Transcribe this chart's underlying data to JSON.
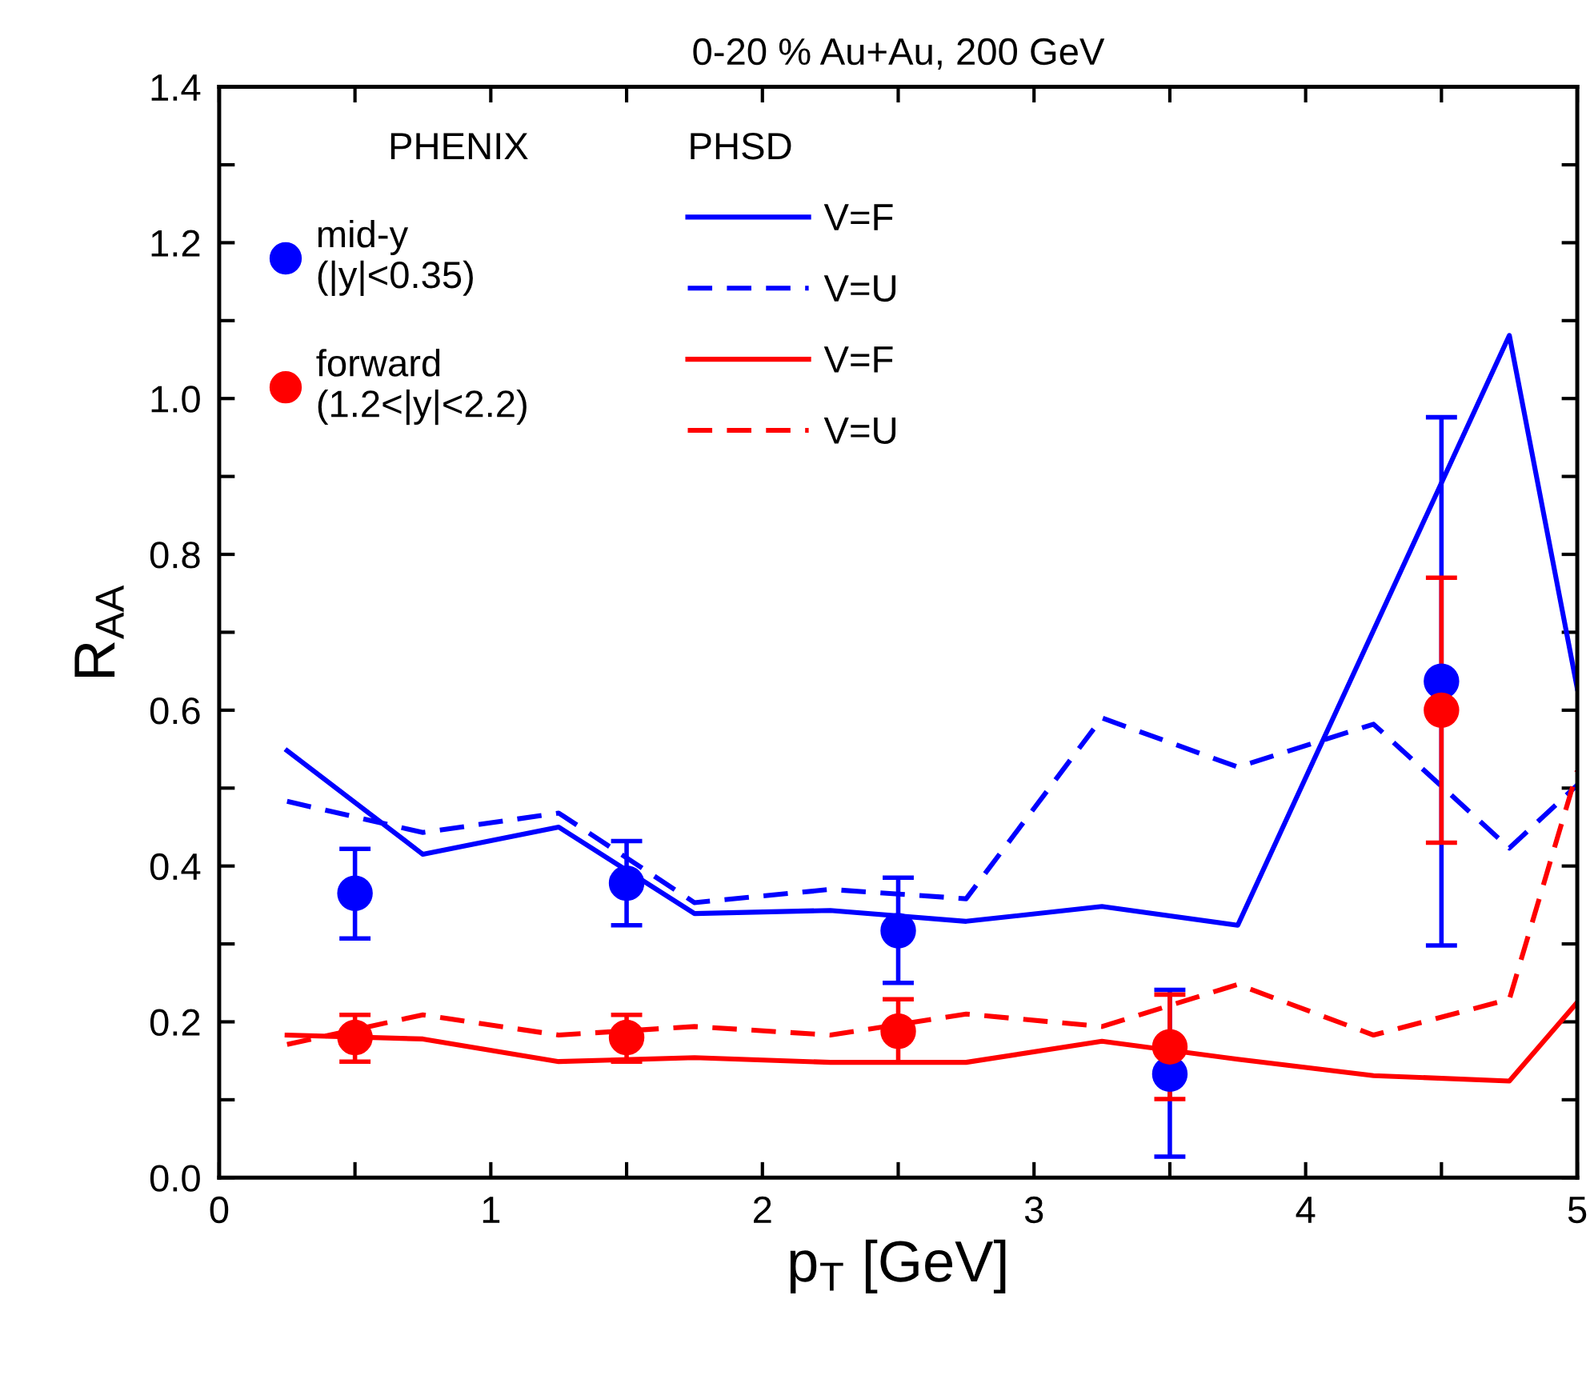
{
  "chart_data": {
    "type": "line",
    "title": "0-20 % Au+Au, 200 GeV",
    "xlabel": "p$_{T}$ [GeV]",
    "ylabel": "R$_{AA}$",
    "xlim": [
      0,
      5
    ],
    "ylim": [
      0,
      1.4
    ],
    "xticks": [
      0,
      {
        "value": 0.5,
        "label": null
      },
      1,
      {
        "value": 1.5,
        "label": null
      },
      2,
      {
        "value": 2.5,
        "label": null
      },
      3,
      {
        "value": 3.5,
        "label": null
      },
      4,
      {
        "value": 4.5,
        "label": null
      },
      5
    ],
    "yticks": [
      {
        "value": 0,
        "label": "0.0"
      },
      {
        "value": 0.1,
        "label": null
      },
      {
        "value": 0.2,
        "label": "0.2"
      },
      {
        "value": 0.3,
        "label": null
      },
      {
        "value": 0.4,
        "label": "0.4"
      },
      {
        "value": 0.5,
        "label": null
      },
      {
        "value": 0.6,
        "label": "0.6"
      },
      {
        "value": 0.7,
        "label": null
      },
      {
        "value": 0.8,
        "label": "0.8"
      },
      {
        "value": 0.9,
        "label": null
      },
      {
        "value": 1.0,
        "label": "1.0"
      },
      {
        "value": 1.1,
        "label": null
      },
      {
        "value": 1.2,
        "label": "1.2"
      },
      {
        "value": 1.3,
        "label": null
      },
      {
        "value": 1.4,
        "label": "1.4"
      }
    ],
    "grid": false,
    "legend": "top left",
    "annotations": [
      "PHENIX",
      "PHSD"
    ],
    "series": [
      {
        "type": "scatter",
        "name": "mid-y\n(|y|<0.35)",
        "color": "#0000ff",
        "marker": "circle",
        "x": [
          0.5,
          1.5,
          2.5,
          3.5,
          4.5
        ],
        "values": [
          0.365,
          0.378,
          0.317,
          0.133,
          0.637
        ],
        "errors": [
          [
            0.307,
            0.422
          ],
          [
            0.324,
            0.432
          ],
          [
            0.25,
            0.385
          ],
          [
            0.027,
            0.241
          ],
          [
            0.298,
            0.976
          ]
        ]
      },
      {
        "name": "V=F",
        "color": "#0000ff",
        "line_style": "solid",
        "x": [
          0.25,
          0.75,
          1.25,
          1.75,
          2.25,
          2.75,
          3.25,
          3.75,
          4.75,
          5
        ],
        "values": [
          0.548,
          0.415,
          0.45,
          0.339,
          0.343,
          0.329,
          0.348,
          0.324,
          1.081,
          0.628
        ]
      },
      {
        "name": "V=U",
        "color": "#0000ff",
        "line_style": "dashed",
        "x": [
          0.25,
          0.75,
          1.25,
          1.75,
          2.25,
          2.75,
          3.25,
          3.75,
          4.25,
          4.75,
          5
        ],
        "values": [
          0.483,
          0.443,
          0.468,
          0.353,
          0.37,
          0.358,
          0.59,
          0.527,
          0.582,
          0.423,
          0.504
        ]
      },
      {
        "type": "scatter",
        "name": "forward\n(1.2<|y|<2.2)",
        "color": "#ff0000",
        "marker": "circle",
        "x": [
          0.5,
          1.5,
          2.5,
          3.5,
          4.5
        ],
        "values": [
          0.18,
          0.18,
          0.188,
          0.168,
          0.6
        ],
        "errors": [
          [
            0.149,
            0.209
          ],
          [
            0.149,
            0.209
          ],
          [
            0.148,
            0.229
          ],
          [
            0.101,
            0.235
          ],
          [
            0.43,
            0.77
          ]
        ]
      },
      {
        "name": "V=F",
        "color": "#ff0000",
        "line_style": "solid",
        "x": [
          0.25,
          0.75,
          1.25,
          1.75,
          2.25,
          2.75,
          3.25,
          3.75,
          4.25,
          4.75,
          5
        ],
        "values": [
          0.183,
          0.178,
          0.149,
          0.154,
          0.148,
          0.148,
          0.175,
          0.152,
          0.131,
          0.124,
          0.225
        ]
      },
      {
        "name": "V=U",
        "color": "#ff0000",
        "line_style": "dashed",
        "x": [
          0.25,
          0.75,
          1.25,
          1.75,
          2.25,
          2.75,
          3.25,
          3.75,
          4.25,
          4.75,
          5
        ],
        "values": [
          0.171,
          0.209,
          0.183,
          0.194,
          0.183,
          0.21,
          0.194,
          0.248,
          0.183,
          0.229,
          0.522
        ]
      }
    ]
  }
}
